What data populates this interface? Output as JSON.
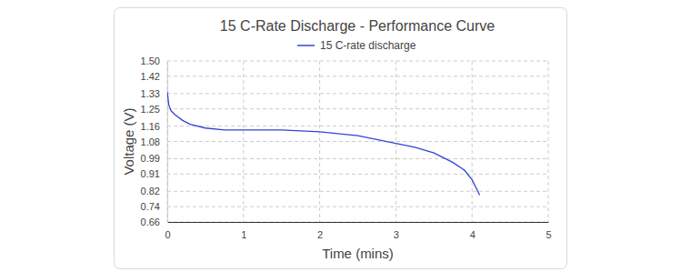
{
  "chart_data": {
    "type": "line",
    "title": "15 C-Rate Discharge - Performance Curve",
    "x_label": "Time (mins)",
    "y_label": "Voltage (V)",
    "x": [
      0,
      0.02,
      0.05,
      0.1,
      0.2,
      0.3,
      0.5,
      0.75,
      1.0,
      1.5,
      2.0,
      2.5,
      3.0,
      3.25,
      3.5,
      3.75,
      3.9,
      4.0,
      4.05,
      4.1
    ],
    "series": [
      {
        "name": "15 C-rate discharge",
        "color": "#3344d4",
        "values": [
          1.34,
          1.27,
          1.24,
          1.22,
          1.19,
          1.17,
          1.15,
          1.14,
          1.14,
          1.14,
          1.13,
          1.11,
          1.07,
          1.05,
          1.02,
          0.97,
          0.93,
          0.88,
          0.84,
          0.8
        ]
      }
    ],
    "xlim": [
      0,
      5
    ],
    "xticks": [
      0,
      1,
      2,
      3,
      4,
      5
    ],
    "ylim": [
      0.66,
      1.5
    ],
    "yticks": [
      {
        "value": 0.66,
        "label": "0.66"
      },
      {
        "value": 0.74,
        "label": "0.74"
      },
      {
        "value": 0.82,
        "label": "0.82"
      },
      {
        "value": 0.91,
        "label": "0.91"
      },
      {
        "value": 0.99,
        "label": "0.99"
      },
      {
        "value": 1.08,
        "label": "1.08"
      },
      {
        "value": 1.16,
        "label": "1.16"
      },
      {
        "value": 1.25,
        "label": "1.25"
      },
      {
        "value": 1.33,
        "label": "1.33"
      },
      {
        "value": 1.42,
        "label": "1.42"
      },
      {
        "value": 1.5,
        "label": "1.50"
      }
    ],
    "grid": true,
    "legend": "top"
  }
}
